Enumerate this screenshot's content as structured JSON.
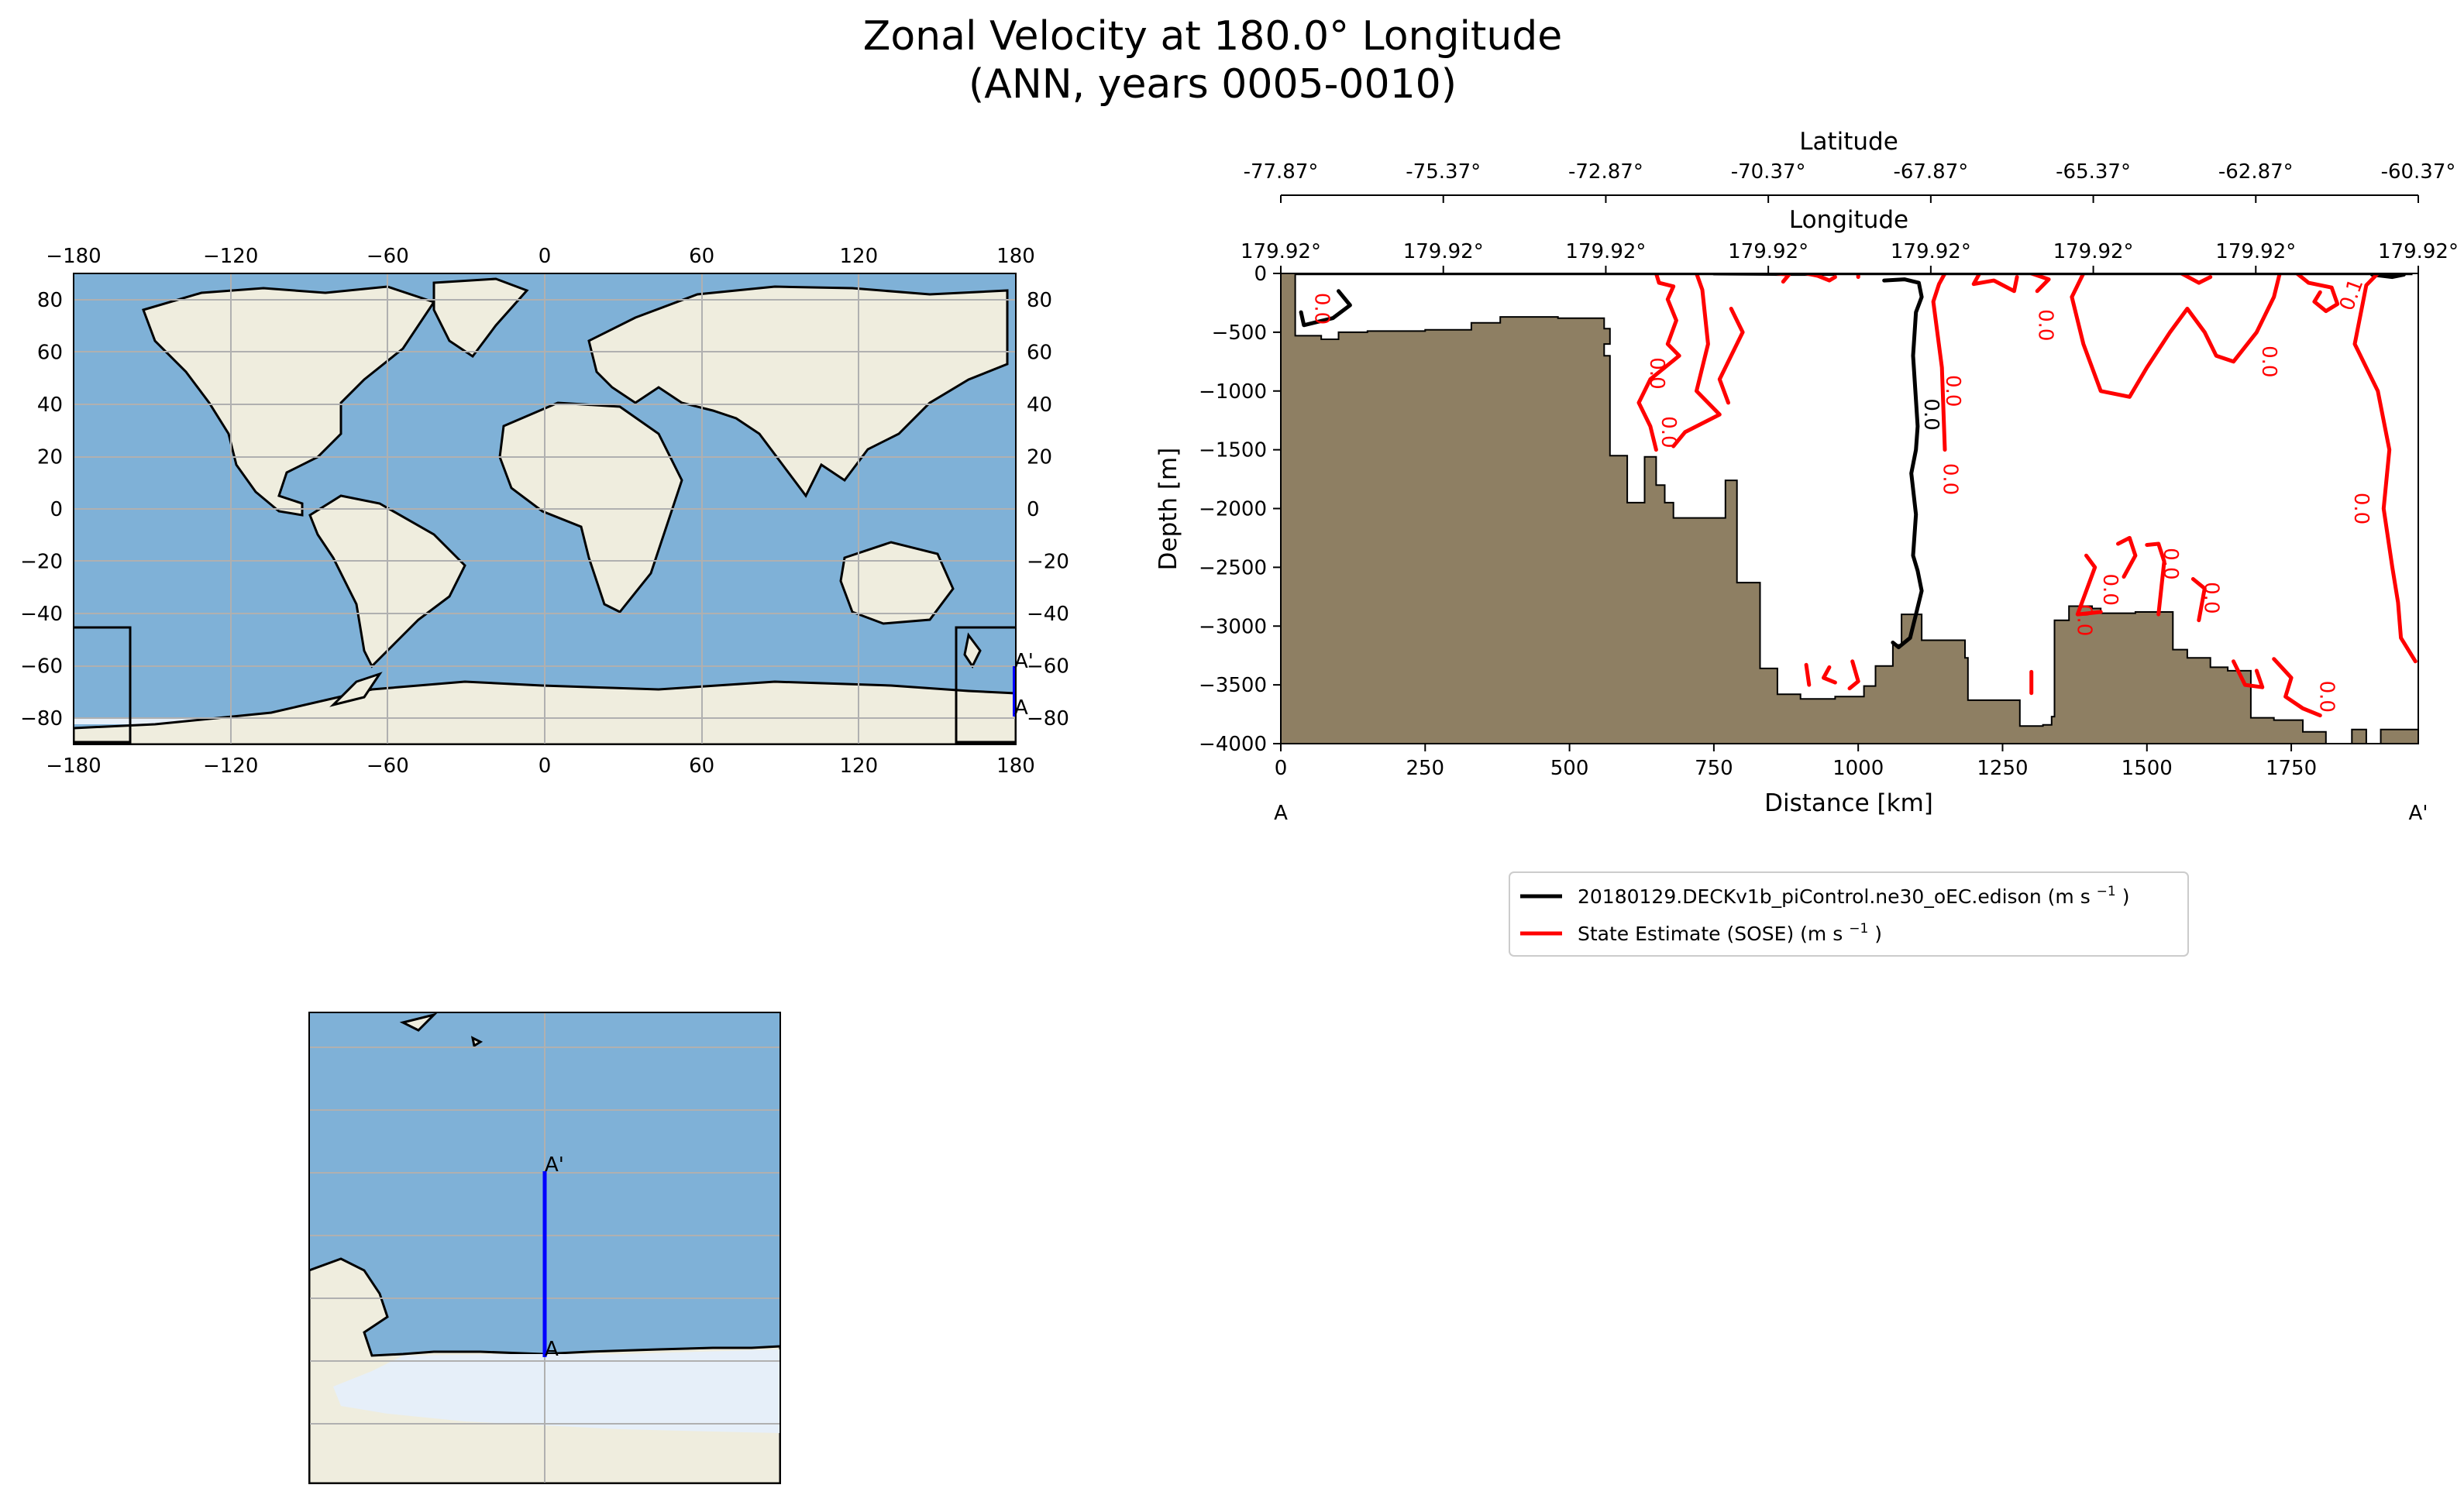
{
  "title_line1": "Zonal Velocity at 180.0° Longitude",
  "title_line2": "(ANN, years 0005-0010)",
  "colors": {
    "ocean": "#7fb1d7",
    "land": "#efedde",
    "seaice": "#e6eff9",
    "topo": "#8e7f63",
    "model_contour": "#000000",
    "obs_contour": "#ff0000",
    "transect": "#0000ff",
    "grid": "#b0b0b0"
  },
  "map": {
    "lon_ticks": [
      "−180",
      "−120",
      "−60",
      "0",
      "60",
      "120",
      "180"
    ],
    "lat_ticks": [
      "80",
      "60",
      "40",
      "20",
      "0",
      "−20",
      "−40",
      "−60",
      "−80"
    ],
    "lon_values": [
      -180,
      -120,
      -60,
      0,
      60,
      120,
      180
    ],
    "lat_values": [
      80,
      60,
      40,
      20,
      0,
      -20,
      -40,
      -60,
      -80
    ],
    "point_start": "A",
    "point_end": "A'"
  },
  "inset": {
    "point_start": "A",
    "point_end": "A'"
  },
  "chart_data": {
    "type": "contour-section",
    "title": "Zonal Velocity at 180.0° Longitude (ANN, years 0005-0010)",
    "xlabel": "Distance [km]",
    "ylabel": "Depth [m]",
    "xlim": [
      0,
      1970
    ],
    "ylim": [
      -4000,
      0
    ],
    "x_ticks": [
      0,
      250,
      500,
      750,
      1000,
      1250,
      1500,
      1750
    ],
    "x_tick_labels": [
      "0",
      "250",
      "500",
      "750",
      "1000",
      "1250",
      "1500",
      "1750"
    ],
    "y_ticks": [
      0,
      -500,
      -1000,
      -1500,
      -2000,
      -2500,
      -3000,
      -3500,
      -4000
    ],
    "y_tick_labels": [
      "0",
      "−500",
      "−1000",
      "−1500",
      "−2000",
      "−2500",
      "−3000",
      "−3500",
      "−4000"
    ],
    "lat_axis_label": "Latitude",
    "lat_ticks": [
      "-77.87°",
      "-75.37°",
      "-72.87°",
      "-70.37°",
      "-67.87°",
      "-65.37°",
      "-62.87°",
      "-60.37°"
    ],
    "lon_axis_label": "Longitude",
    "lon_ticks": [
      "179.92°",
      "179.92°",
      "179.92°",
      "179.92°",
      "179.92°",
      "179.92°",
      "179.92°",
      "179.92°"
    ],
    "endpoint_start": "A",
    "endpoint_end": "A'",
    "contour_level_label": "0.0",
    "contour_label_small": "0.1",
    "bathymetry": [
      [
        0,
        -4000
      ],
      [
        0,
        0
      ],
      [
        25,
        0
      ],
      [
        25,
        -530
      ],
      [
        70,
        -530
      ],
      [
        70,
        -560
      ],
      [
        100,
        -560
      ],
      [
        100,
        -500
      ],
      [
        150,
        -500
      ],
      [
        150,
        -490
      ],
      [
        250,
        -490
      ],
      [
        250,
        -480
      ],
      [
        330,
        -480
      ],
      [
        330,
        -420
      ],
      [
        380,
        -420
      ],
      [
        380,
        -370
      ],
      [
        480,
        -370
      ],
      [
        480,
        -380
      ],
      [
        560,
        -380
      ],
      [
        560,
        -450
      ],
      [
        560,
        -470
      ],
      [
        570,
        -470
      ],
      [
        570,
        -600
      ],
      [
        560,
        -600
      ],
      [
        560,
        -700
      ],
      [
        570,
        -700
      ],
      [
        570,
        -1550
      ],
      [
        600,
        -1550
      ],
      [
        600,
        -1950
      ],
      [
        630,
        -1950
      ],
      [
        630,
        -1560
      ],
      [
        650,
        -1560
      ],
      [
        650,
        -1800
      ],
      [
        665,
        -1800
      ],
      [
        665,
        -1950
      ],
      [
        680,
        -1950
      ],
      [
        680,
        -2080
      ],
      [
        770,
        -2080
      ],
      [
        770,
        -1760
      ],
      [
        790,
        -1760
      ],
      [
        790,
        -2630
      ],
      [
        830,
        -2630
      ],
      [
        830,
        -3360
      ],
      [
        860,
        -3360
      ],
      [
        860,
        -3580
      ],
      [
        900,
        -3580
      ],
      [
        900,
        -3620
      ],
      [
        960,
        -3620
      ],
      [
        960,
        -3600
      ],
      [
        1010,
        -3600
      ],
      [
        1010,
        -3510
      ],
      [
        1030,
        -3510
      ],
      [
        1030,
        -3340
      ],
      [
        1060,
        -3340
      ],
      [
        1060,
        -3160
      ],
      [
        1075,
        -3160
      ],
      [
        1075,
        -2900
      ],
      [
        1110,
        -2900
      ],
      [
        1110,
        -3120
      ],
      [
        1185,
        -3120
      ],
      [
        1185,
        -3270
      ],
      [
        1190,
        -3270
      ],
      [
        1190,
        -3630
      ],
      [
        1220,
        -3630
      ],
      [
        1220,
        -3630
      ],
      [
        1280,
        -3630
      ],
      [
        1280,
        -3850
      ],
      [
        1320,
        -3850
      ],
      [
        1320,
        -3840
      ],
      [
        1335,
        -3840
      ],
      [
        1335,
        -3770
      ],
      [
        1340,
        -3770
      ],
      [
        1340,
        -3150
      ],
      [
        1340,
        -2950
      ],
      [
        1365,
        -2950
      ],
      [
        1365,
        -2830
      ],
      [
        1405,
        -2830
      ],
      [
        1405,
        -2850
      ],
      [
        1420,
        -2850
      ],
      [
        1420,
        -2890
      ],
      [
        1480,
        -2890
      ],
      [
        1480,
        -2880
      ],
      [
        1545,
        -2880
      ],
      [
        1545,
        -3200
      ],
      [
        1570,
        -3200
      ],
      [
        1570,
        -3270
      ],
      [
        1610,
        -3270
      ],
      [
        1610,
        -3350
      ],
      [
        1640,
        -3350
      ],
      [
        1640,
        -3380
      ],
      [
        1680,
        -3380
      ],
      [
        1680,
        -3780
      ],
      [
        1720,
        -3780
      ],
      [
        1720,
        -3800
      ],
      [
        1770,
        -3800
      ],
      [
        1770,
        -3900
      ],
      [
        1810,
        -3900
      ],
      [
        1810,
        -4000
      ],
      [
        1855,
        -4000
      ],
      [
        1855,
        -3880
      ],
      [
        1880,
        -3880
      ],
      [
        1880,
        -4000
      ]
    ],
    "series": [
      {
        "name": "20180129.DECKv1b_piControl.ne30_oEC.edison",
        "units": "(m s",
        "units_sup": "−1",
        "units_close": ")",
        "color": "#000000",
        "lines": [
          [
            [
              1045,
              -60
            ],
            [
              1080,
              -50
            ],
            [
              1105,
              -80
            ],
            [
              1110,
              -200
            ],
            [
              1100,
              -330
            ],
            [
              1095,
              -700
            ],
            [
              1103,
              -1300
            ],
            [
              1100,
              -1500
            ],
            [
              1092,
              -1700
            ],
            [
              1100,
              -2050
            ],
            [
              1095,
              -2400
            ],
            [
              1103,
              -2530
            ],
            [
              1110,
              -2700
            ],
            [
              1100,
              -2900
            ],
            [
              1090,
              -3100
            ],
            [
              1070,
              -3180
            ],
            [
              1060,
              -3140
            ]
          ],
          [
            [
              100,
              -150
            ],
            [
              120,
              -270
            ],
            [
              90,
              -380
            ],
            [
              40,
              -440
            ],
            [
              35,
              -330
            ]
          ],
          [
            [
              750,
              0
            ],
            [
              860,
              -4
            ],
            [
              960,
              -4
            ]
          ],
          [
            [
              1890,
              -10
            ],
            [
              1925,
              -30
            ],
            [
              1945,
              -10
            ]
          ]
        ]
      },
      {
        "name": "State Estimate (SOSE)",
        "units": "(m s",
        "units_sup": "−1",
        "units_close": ")",
        "color": "#ff0000",
        "lines": [
          [
            [
              650,
              0
            ],
            [
              655,
              -80
            ],
            [
              680,
              -110
            ],
            [
              670,
              -220
            ],
            [
              685,
              -400
            ],
            [
              670,
              -600
            ],
            [
              690,
              -700
            ],
            [
              640,
              -900
            ],
            [
              620,
              -1100
            ],
            [
              640,
              -1300
            ],
            [
              650,
              -1500
            ]
          ],
          [
            [
              720,
              0
            ],
            [
              730,
              -140
            ],
            [
              740,
              -600
            ],
            [
              720,
              -1000
            ],
            [
              760,
              -1200
            ],
            [
              700,
              -1350
            ],
            [
              680,
              -1470
            ]
          ],
          [
            [
              780,
              -300
            ],
            [
              800,
              -500
            ],
            [
              780,
              -700
            ],
            [
              760,
              -900
            ],
            [
              775,
              -1100
            ]
          ],
          [
            [
              860,
              0
            ],
            [
              880,
              -10
            ],
            [
              870,
              -70
            ]
          ],
          [
            [
              910,
              0
            ],
            [
              930,
              -20
            ],
            [
              950,
              -60
            ],
            [
              960,
              -30
            ]
          ],
          [
            [
              1000,
              0
            ],
            [
              1000,
              -30
            ]
          ],
          [
            [
              1150,
              0
            ],
            [
              1140,
              -90
            ],
            [
              1130,
              -240
            ],
            [
              1145,
              -800
            ],
            [
              1150,
              -1500
            ]
          ],
          [
            [
              1210,
              0
            ],
            [
              1200,
              -90
            ],
            [
              1235,
              -60
            ],
            [
              1270,
              -150
            ],
            [
              1275,
              -30
            ]
          ],
          [
            [
              1300,
              0
            ],
            [
              1330,
              -50
            ],
            [
              1310,
              -150
            ]
          ],
          [
            [
              1390,
              0
            ],
            [
              1370,
              -200
            ],
            [
              1390,
              -600
            ],
            [
              1420,
              -1000
            ],
            [
              1470,
              -1050
            ],
            [
              1500,
              -800
            ],
            [
              1540,
              -500
            ],
            [
              1570,
              -300
            ],
            [
              1600,
              -500
            ],
            [
              1620,
              -700
            ],
            [
              1650,
              -750
            ],
            [
              1690,
              -500
            ],
            [
              1720,
              -200
            ],
            [
              1730,
              0
            ]
          ],
          [
            [
              1560,
              0
            ],
            [
              1590,
              -80
            ],
            [
              1610,
              -30
            ]
          ],
          [
            [
              1760,
              0
            ],
            [
              1780,
              -80
            ],
            [
              1820,
              -120
            ],
            [
              1830,
              -260
            ],
            [
              1810,
              -320
            ],
            [
              1790,
              -240
            ],
            [
              1800,
              -160
            ]
          ],
          [
            [
              1900,
              0
            ],
            [
              1880,
              -100
            ],
            [
              1860,
              -600
            ],
            [
              1900,
              -1000
            ],
            [
              1920,
              -1500
            ],
            [
              1910,
              -2000
            ],
            [
              1925,
              -2500
            ],
            [
              1935,
              -2800
            ],
            [
              1940,
              -3100
            ],
            [
              1965,
              -3300
            ]
          ],
          [
            [
              1395,
              -2400
            ],
            [
              1410,
              -2500
            ],
            [
              1380,
              -2900
            ],
            [
              1420,
              -2880
            ]
          ],
          [
            [
              1450,
              -2300
            ],
            [
              1470,
              -2250
            ],
            [
              1480,
              -2400
            ],
            [
              1460,
              -2580
            ]
          ],
          [
            [
              1500,
              -2310
            ],
            [
              1520,
              -2300
            ],
            [
              1530,
              -2450
            ],
            [
              1520,
              -2900
            ]
          ],
          [
            [
              1580,
              -2600
            ],
            [
              1600,
              -2680
            ],
            [
              1590,
              -2950
            ]
          ],
          [
            [
              1650,
              -3300
            ],
            [
              1670,
              -3500
            ],
            [
              1700,
              -3520
            ],
            [
              1690,
              -3380
            ]
          ],
          [
            [
              1720,
              -3280
            ],
            [
              1750,
              -3440
            ],
            [
              1740,
              -3600
            ],
            [
              1770,
              -3700
            ],
            [
              1800,
              -3760
            ]
          ],
          [
            [
              1300,
              -3390
            ],
            [
              1300,
              -3570
            ]
          ],
          [
            [
              910,
              -3330
            ],
            [
              915,
              -3500
            ]
          ],
          [
            [
              950,
              -3350
            ],
            [
              940,
              -3440
            ],
            [
              960,
              -3480
            ]
          ],
          [
            [
              990,
              -3300
            ],
            [
              1000,
              -3470
            ],
            [
              985,
              -3530
            ]
          ]
        ]
      }
    ]
  }
}
